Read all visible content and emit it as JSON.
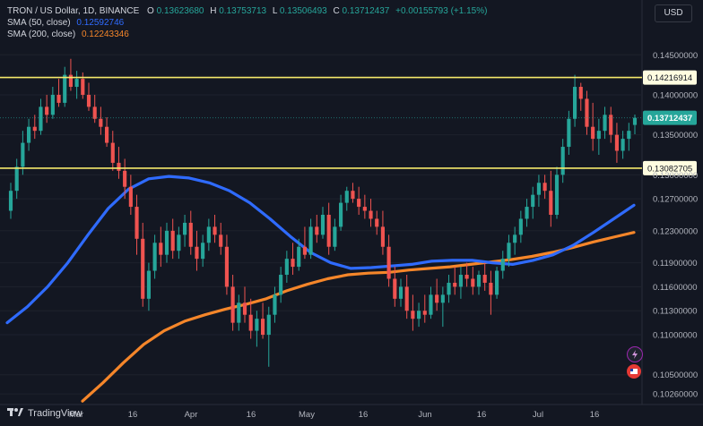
{
  "header": {
    "symbol": "TRON / US Dollar, 1D, BINANCE",
    "ohlc_o_label": "O",
    "ohlc_o": "0.13623680",
    "ohlc_h_label": "H",
    "ohlc_h": "0.13753713",
    "ohlc_l_label": "L",
    "ohlc_l": "0.13506493",
    "ohlc_c_label": "C",
    "ohlc_c": "0.13712437",
    "change": "+0.00155793 (+1.15%)",
    "sma50_label": "SMA (50, close)",
    "sma50_value": "0.12592746",
    "sma200_label": "SMA (200, close)",
    "sma200_value": "0.12243346",
    "currency": "USD"
  },
  "brand": {
    "name": "TradingView"
  },
  "colors": {
    "up": "#26a69a",
    "down": "#ef5350",
    "sma50": "#2f6bff",
    "sma200": "#f5862a",
    "hline": "#f5e96b",
    "price_tag": "#26a69a"
  },
  "chart_data": {
    "type": "candlestick",
    "ylim": [
      0.1015,
      0.1485
    ],
    "y_ticks": [
      "0.14500000",
      "0.14000000",
      "0.13500000",
      "0.13000000",
      "0.12700000",
      "0.12300000",
      "0.11900000",
      "0.11600000",
      "0.11300000",
      "0.11000000",
      "0.10500000",
      "0.10260000"
    ],
    "x_ticks": [
      "Mar",
      "16",
      "Apr",
      "16",
      "May",
      "16",
      "Jun",
      "16",
      "Jul",
      "16"
    ],
    "horizontal_lines": [
      {
        "value": 0.14216914,
        "label": "0.14216914"
      },
      {
        "value": 0.13082705,
        "label": "0.13082705"
      }
    ],
    "last_price": {
      "value": 0.13712437,
      "label": "0.13712437"
    },
    "candles": [
      {
        "o": 0.1255,
        "h": 0.129,
        "l": 0.1245,
        "c": 0.128
      },
      {
        "o": 0.128,
        "h": 0.132,
        "l": 0.127,
        "c": 0.131
      },
      {
        "o": 0.131,
        "h": 0.1355,
        "l": 0.13,
        "c": 0.134
      },
      {
        "o": 0.134,
        "h": 0.137,
        "l": 0.133,
        "c": 0.136
      },
      {
        "o": 0.136,
        "h": 0.1375,
        "l": 0.1345,
        "c": 0.1355
      },
      {
        "o": 0.1355,
        "h": 0.1395,
        "l": 0.135,
        "c": 0.1385
      },
      {
        "o": 0.1385,
        "h": 0.14,
        "l": 0.1365,
        "c": 0.1375
      },
      {
        "o": 0.1375,
        "h": 0.141,
        "l": 0.137,
        "c": 0.14
      },
      {
        "o": 0.14,
        "h": 0.142,
        "l": 0.1385,
        "c": 0.139
      },
      {
        "o": 0.139,
        "h": 0.1435,
        "l": 0.1385,
        "c": 0.1425
      },
      {
        "o": 0.1425,
        "h": 0.1445,
        "l": 0.1405,
        "c": 0.141
      },
      {
        "o": 0.141,
        "h": 0.143,
        "l": 0.1395,
        "c": 0.142
      },
      {
        "o": 0.142,
        "h": 0.1428,
        "l": 0.1395,
        "c": 0.14
      },
      {
        "o": 0.14,
        "h": 0.1415,
        "l": 0.138,
        "c": 0.1385
      },
      {
        "o": 0.1385,
        "h": 0.14,
        "l": 0.1365,
        "c": 0.137
      },
      {
        "o": 0.137,
        "h": 0.1385,
        "l": 0.135,
        "c": 0.136
      },
      {
        "o": 0.136,
        "h": 0.1372,
        "l": 0.1335,
        "c": 0.134
      },
      {
        "o": 0.134,
        "h": 0.1355,
        "l": 0.1305,
        "c": 0.1315
      },
      {
        "o": 0.1315,
        "h": 0.1335,
        "l": 0.1295,
        "c": 0.1305
      },
      {
        "o": 0.1305,
        "h": 0.132,
        "l": 0.127,
        "c": 0.1285
      },
      {
        "o": 0.1285,
        "h": 0.13,
        "l": 0.125,
        "c": 0.126
      },
      {
        "o": 0.126,
        "h": 0.1275,
        "l": 0.12,
        "c": 0.122
      },
      {
        "o": 0.122,
        "h": 0.124,
        "l": 0.1135,
        "c": 0.1145
      },
      {
        "o": 0.1145,
        "h": 0.119,
        "l": 0.113,
        "c": 0.118
      },
      {
        "o": 0.118,
        "h": 0.1225,
        "l": 0.117,
        "c": 0.1215
      },
      {
        "o": 0.1215,
        "h": 0.1235,
        "l": 0.1185,
        "c": 0.12
      },
      {
        "o": 0.12,
        "h": 0.124,
        "l": 0.119,
        "c": 0.123
      },
      {
        "o": 0.123,
        "h": 0.1245,
        "l": 0.1195,
        "c": 0.1205
      },
      {
        "o": 0.1205,
        "h": 0.1235,
        "l": 0.1195,
        "c": 0.1225
      },
      {
        "o": 0.1225,
        "h": 0.125,
        "l": 0.121,
        "c": 0.124
      },
      {
        "o": 0.124,
        "h": 0.1255,
        "l": 0.12,
        "c": 0.121
      },
      {
        "o": 0.121,
        "h": 0.123,
        "l": 0.118,
        "c": 0.1195
      },
      {
        "o": 0.1195,
        "h": 0.1225,
        "l": 0.1185,
        "c": 0.1215
      },
      {
        "o": 0.1215,
        "h": 0.1245,
        "l": 0.1205,
        "c": 0.1235
      },
      {
        "o": 0.1235,
        "h": 0.125,
        "l": 0.1215,
        "c": 0.1225
      },
      {
        "o": 0.1225,
        "h": 0.124,
        "l": 0.12,
        "c": 0.121
      },
      {
        "o": 0.121,
        "h": 0.1225,
        "l": 0.115,
        "c": 0.116
      },
      {
        "o": 0.116,
        "h": 0.1175,
        "l": 0.1105,
        "c": 0.1115
      },
      {
        "o": 0.1115,
        "h": 0.115,
        "l": 0.1105,
        "c": 0.114
      },
      {
        "o": 0.114,
        "h": 0.116,
        "l": 0.1115,
        "c": 0.1125
      },
      {
        "o": 0.1125,
        "h": 0.1145,
        "l": 0.1095,
        "c": 0.1105
      },
      {
        "o": 0.1105,
        "h": 0.113,
        "l": 0.1085,
        "c": 0.112
      },
      {
        "o": 0.112,
        "h": 0.114,
        "l": 0.1095,
        "c": 0.11
      },
      {
        "o": 0.11,
        "h": 0.1135,
        "l": 0.106,
        "c": 0.1125
      },
      {
        "o": 0.1125,
        "h": 0.116,
        "l": 0.1115,
        "c": 0.115
      },
      {
        "o": 0.115,
        "h": 0.1185,
        "l": 0.114,
        "c": 0.1175
      },
      {
        "o": 0.1175,
        "h": 0.1205,
        "l": 0.1165,
        "c": 0.1195
      },
      {
        "o": 0.1195,
        "h": 0.1215,
        "l": 0.1175,
        "c": 0.1185
      },
      {
        "o": 0.1185,
        "h": 0.122,
        "l": 0.118,
        "c": 0.121
      },
      {
        "o": 0.121,
        "h": 0.1235,
        "l": 0.1195,
        "c": 0.12
      },
      {
        "o": 0.12,
        "h": 0.1245,
        "l": 0.1195,
        "c": 0.1235
      },
      {
        "o": 0.1235,
        "h": 0.125,
        "l": 0.1215,
        "c": 0.1225
      },
      {
        "o": 0.1225,
        "h": 0.126,
        "l": 0.122,
        "c": 0.125
      },
      {
        "o": 0.125,
        "h": 0.1265,
        "l": 0.12,
        "c": 0.121
      },
      {
        "o": 0.121,
        "h": 0.1245,
        "l": 0.1205,
        "c": 0.1235
      },
      {
        "o": 0.1235,
        "h": 0.1275,
        "l": 0.123,
        "c": 0.1265
      },
      {
        "o": 0.1265,
        "h": 0.1285,
        "l": 0.1255,
        "c": 0.128
      },
      {
        "o": 0.128,
        "h": 0.129,
        "l": 0.1265,
        "c": 0.127
      },
      {
        "o": 0.127,
        "h": 0.1285,
        "l": 0.125,
        "c": 0.126
      },
      {
        "o": 0.126,
        "h": 0.1275,
        "l": 0.1245,
        "c": 0.1255
      },
      {
        "o": 0.1255,
        "h": 0.127,
        "l": 0.1235,
        "c": 0.1245
      },
      {
        "o": 0.1245,
        "h": 0.1255,
        "l": 0.1225,
        "c": 0.1235
      },
      {
        "o": 0.1235,
        "h": 0.1255,
        "l": 0.12,
        "c": 0.121
      },
      {
        "o": 0.121,
        "h": 0.1225,
        "l": 0.116,
        "c": 0.117
      },
      {
        "o": 0.117,
        "h": 0.1185,
        "l": 0.1135,
        "c": 0.1145
      },
      {
        "o": 0.1145,
        "h": 0.117,
        "l": 0.1135,
        "c": 0.116
      },
      {
        "o": 0.116,
        "h": 0.1175,
        "l": 0.112,
        "c": 0.113
      },
      {
        "o": 0.113,
        "h": 0.115,
        "l": 0.1105,
        "c": 0.112
      },
      {
        "o": 0.112,
        "h": 0.114,
        "l": 0.111,
        "c": 0.113
      },
      {
        "o": 0.113,
        "h": 0.115,
        "l": 0.1115,
        "c": 0.1125
      },
      {
        "o": 0.1125,
        "h": 0.116,
        "l": 0.112,
        "c": 0.115
      },
      {
        "o": 0.115,
        "h": 0.117,
        "l": 0.113,
        "c": 0.114
      },
      {
        "o": 0.114,
        "h": 0.116,
        "l": 0.111,
        "c": 0.115
      },
      {
        "o": 0.115,
        "h": 0.1175,
        "l": 0.114,
        "c": 0.1165
      },
      {
        "o": 0.1165,
        "h": 0.1185,
        "l": 0.115,
        "c": 0.116
      },
      {
        "o": 0.116,
        "h": 0.1185,
        "l": 0.1145,
        "c": 0.1175
      },
      {
        "o": 0.1175,
        "h": 0.119,
        "l": 0.116,
        "c": 0.117
      },
      {
        "o": 0.117,
        "h": 0.1185,
        "l": 0.115,
        "c": 0.116
      },
      {
        "o": 0.116,
        "h": 0.118,
        "l": 0.115,
        "c": 0.1175
      },
      {
        "o": 0.1175,
        "h": 0.119,
        "l": 0.1155,
        "c": 0.1165
      },
      {
        "o": 0.1165,
        "h": 0.118,
        "l": 0.1125,
        "c": 0.115
      },
      {
        "o": 0.115,
        "h": 0.1185,
        "l": 0.1145,
        "c": 0.118
      },
      {
        "o": 0.118,
        "h": 0.1205,
        "l": 0.117,
        "c": 0.1195
      },
      {
        "o": 0.1195,
        "h": 0.1225,
        "l": 0.1185,
        "c": 0.1215
      },
      {
        "o": 0.1215,
        "h": 0.1235,
        "l": 0.12,
        "c": 0.1225
      },
      {
        "o": 0.1225,
        "h": 0.1255,
        "l": 0.1215,
        "c": 0.1245
      },
      {
        "o": 0.1245,
        "h": 0.127,
        "l": 0.1235,
        "c": 0.126
      },
      {
        "o": 0.126,
        "h": 0.1285,
        "l": 0.1245,
        "c": 0.1275
      },
      {
        "o": 0.1275,
        "h": 0.13,
        "l": 0.126,
        "c": 0.129
      },
      {
        "o": 0.129,
        "h": 0.13,
        "l": 0.127,
        "c": 0.128
      },
      {
        "o": 0.128,
        "h": 0.1305,
        "l": 0.1235,
        "c": 0.125
      },
      {
        "o": 0.125,
        "h": 0.131,
        "l": 0.1245,
        "c": 0.13
      },
      {
        "o": 0.13,
        "h": 0.1345,
        "l": 0.129,
        "c": 0.1335
      },
      {
        "o": 0.1335,
        "h": 0.138,
        "l": 0.1325,
        "c": 0.137
      },
      {
        "o": 0.137,
        "h": 0.1425,
        "l": 0.136,
        "c": 0.141
      },
      {
        "o": 0.141,
        "h": 0.1415,
        "l": 0.138,
        "c": 0.1395
      },
      {
        "o": 0.1395,
        "h": 0.1405,
        "l": 0.135,
        "c": 0.136
      },
      {
        "o": 0.136,
        "h": 0.139,
        "l": 0.133,
        "c": 0.1345
      },
      {
        "o": 0.1345,
        "h": 0.137,
        "l": 0.1325,
        "c": 0.1355
      },
      {
        "o": 0.1355,
        "h": 0.1385,
        "l": 0.1345,
        "c": 0.1375
      },
      {
        "o": 0.1375,
        "h": 0.1385,
        "l": 0.134,
        "c": 0.135
      },
      {
        "o": 0.135,
        "h": 0.1365,
        "l": 0.1315,
        "c": 0.133
      },
      {
        "o": 0.133,
        "h": 0.1355,
        "l": 0.132,
        "c": 0.1345
      },
      {
        "o": 0.1345,
        "h": 0.1365,
        "l": 0.133,
        "c": 0.1355
      },
      {
        "o": 0.1362368,
        "h": 0.13753713,
        "l": 0.13506493,
        "c": 0.13712437
      }
    ],
    "sma50": [
      0.1115,
      0.1135,
      0.116,
      0.119,
      0.1225,
      0.1258,
      0.1282,
      0.1295,
      0.1298,
      0.1296,
      0.129,
      0.128,
      0.1265,
      0.1245,
      0.1223,
      0.1203,
      0.119,
      0.1183,
      0.1184,
      0.1186,
      0.1188,
      0.1192,
      0.1193,
      0.1193,
      0.119,
      0.1188,
      0.1193,
      0.12,
      0.1212,
      0.1228,
      0.1245,
      0.1262
    ],
    "sma200": [
      0.1017,
      0.104,
      0.1065,
      0.1088,
      0.1105,
      0.1117,
      0.1125,
      0.1132,
      0.1138,
      0.1145,
      0.1155,
      0.1163,
      0.117,
      0.1175,
      0.1177,
      0.1178,
      0.1181,
      0.1183,
      0.1185,
      0.1188,
      0.1191,
      0.1194,
      0.1198,
      0.1203,
      0.1209,
      0.1216,
      0.1222,
      0.1228
    ]
  }
}
